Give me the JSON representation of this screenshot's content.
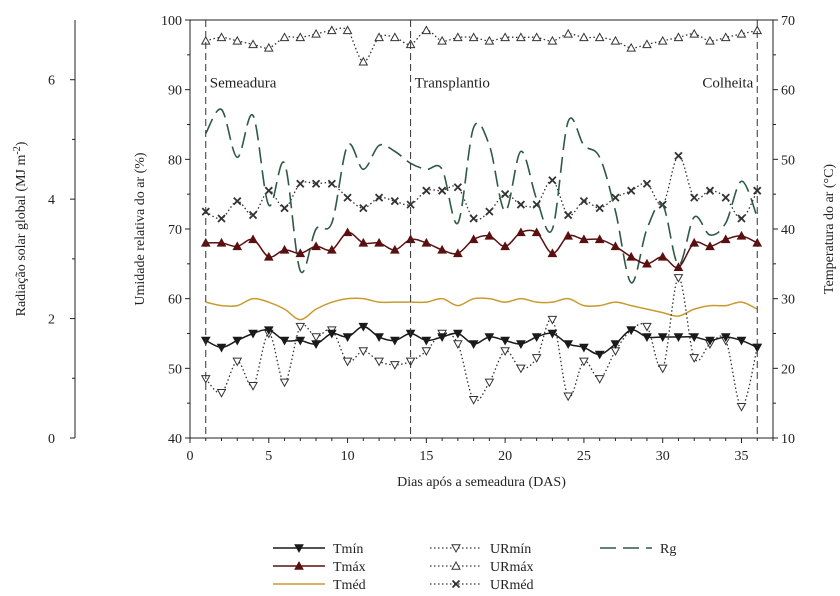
{
  "chart_data": {
    "type": "line",
    "title": "",
    "xlabel": "Dias após a semeadura (DAS)",
    "ylabel_left": "Umidade relativa do ar (%)",
    "ylabel_right": "Temperatura do ar (°C)",
    "ylabel_far_left_main": "Radiação solar global (MJ m",
    "ylabel_far_left_sup": "-2",
    "ylabel_far_left_end": ")",
    "xlim": [
      0,
      37
    ],
    "ylim_left": [
      40,
      100
    ],
    "ylim_right": [
      10,
      70
    ],
    "ylim_far_left": [
      0,
      7
    ],
    "x_ticks": [
      0,
      5,
      10,
      15,
      20,
      25,
      30,
      35
    ],
    "x_tick_labels": [
      "0",
      "5",
      "10",
      "15",
      "20",
      "25",
      "30",
      "35"
    ],
    "y_left_ticks": [
      40,
      50,
      60,
      70,
      80,
      90,
      100
    ],
    "y_left_tick_labels": [
      "40",
      "50",
      "60",
      "70",
      "80",
      "90",
      "100"
    ],
    "y_right_ticks": [
      10,
      20,
      30,
      40,
      50,
      60,
      70
    ],
    "y_right_tick_labels": [
      "10",
      "20",
      "30",
      "40",
      "50",
      "60",
      "70"
    ],
    "y_far_left_ticks": [
      0,
      2,
      4,
      6
    ],
    "y_far_left_tick_labels": [
      "0",
      "2",
      "4",
      "6"
    ],
    "annotations": [
      {
        "x": 1,
        "text": "Semeadura"
      },
      {
        "x": 14,
        "text": "Transplantio"
      },
      {
        "x": 36,
        "text": "Colheita"
      }
    ],
    "grid": false,
    "legend_position": "bottom",
    "x": [
      1,
      2,
      3,
      4,
      5,
      6,
      7,
      8,
      9,
      10,
      11,
      12,
      13,
      14,
      15,
      16,
      17,
      18,
      19,
      20,
      21,
      22,
      23,
      24,
      25,
      26,
      27,
      28,
      29,
      30,
      31,
      32,
      33,
      34,
      35,
      36
    ],
    "series": [
      {
        "name": "Tmín",
        "axis": "right",
        "color": "#1a1a1a",
        "dash": "solid",
        "marker": "triangle-down-filled",
        "values": [
          24.0,
          23.0,
          24.0,
          25.0,
          25.5,
          24.0,
          24.0,
          23.5,
          25.0,
          24.5,
          26.0,
          24.5,
          24.0,
          25.0,
          24.0,
          24.5,
          25.0,
          23.5,
          24.5,
          24.0,
          23.5,
          24.5,
          25.0,
          23.5,
          23.0,
          22.0,
          23.5,
          25.5,
          24.5,
          24.5,
          24.5,
          24.5,
          24.0,
          24.5,
          24.0,
          23.0
        ]
      },
      {
        "name": "Tmáx",
        "axis": "right",
        "color": "#5a1010",
        "dash": "solid",
        "marker": "triangle-up-filled",
        "values": [
          38.0,
          38.0,
          37.5,
          38.5,
          36.0,
          37.0,
          36.5,
          37.5,
          37.0,
          39.5,
          38.0,
          38.0,
          37.0,
          38.5,
          38.0,
          37.0,
          36.5,
          38.5,
          39.0,
          37.5,
          39.5,
          39.5,
          36.5,
          39.0,
          38.5,
          38.5,
          37.5,
          36.0,
          35.0,
          36.0,
          34.5,
          38.0,
          37.5,
          38.5,
          39.0,
          38.0
        ]
      },
      {
        "name": "Tméd",
        "axis": "right",
        "color": "#c99a2e",
        "dash": "solid",
        "marker": "none",
        "values": [
          29.5,
          29.0,
          29.0,
          30.0,
          29.5,
          28.5,
          27.0,
          28.5,
          29.5,
          30.0,
          30.0,
          29.5,
          29.5,
          29.5,
          29.5,
          30.0,
          29.0,
          30.0,
          30.0,
          29.5,
          30.0,
          29.5,
          29.5,
          30.0,
          29.0,
          29.0,
          29.5,
          29.0,
          28.5,
          28.0,
          27.5,
          28.5,
          29.0,
          29.0,
          29.5,
          28.5
        ]
      },
      {
        "name": "URmín",
        "axis": "left",
        "color": "#333333",
        "dash": "dotted",
        "marker": "triangle-down-open",
        "values": [
          48.5,
          46.5,
          51.0,
          47.5,
          55.0,
          48.0,
          56.0,
          54.5,
          55.5,
          51.0,
          52.5,
          51.0,
          50.5,
          51.0,
          52.5,
          55.0,
          53.5,
          45.5,
          48.0,
          52.5,
          50.0,
          51.5,
          57.0,
          46.0,
          51.0,
          48.5,
          52.5,
          55.5,
          56.0,
          50.0,
          63.0,
          51.5,
          53.5,
          54.0,
          44.5,
          53.0
        ]
      },
      {
        "name": "URmáx",
        "axis": "left",
        "color": "#333333",
        "dash": "dotted",
        "marker": "triangle-up-open",
        "values": [
          97.0,
          97.5,
          97.0,
          96.5,
          96.0,
          97.5,
          97.5,
          98.0,
          98.5,
          98.5,
          94.0,
          97.5,
          97.5,
          96.5,
          98.5,
          97.0,
          97.5,
          97.5,
          97.0,
          97.5,
          97.5,
          97.5,
          97.0,
          98.0,
          97.5,
          97.5,
          97.0,
          96.0,
          96.5,
          97.0,
          97.5,
          98.0,
          97.0,
          97.5,
          98.0,
          98.5
        ]
      },
      {
        "name": "URméd",
        "axis": "left",
        "color": "#333333",
        "dash": "dotted",
        "marker": "x",
        "values": [
          72.5,
          71.5,
          74.0,
          72.0,
          75.5,
          73.0,
          76.5,
          76.5,
          76.5,
          74.5,
          73.0,
          74.5,
          74.0,
          73.5,
          75.5,
          75.5,
          76.0,
          71.5,
          72.5,
          75.0,
          73.5,
          73.5,
          77.0,
          72.0,
          74.0,
          73.0,
          74.5,
          75.5,
          76.5,
          73.5,
          80.5,
          74.5,
          75.5,
          74.5,
          71.5,
          75.5
        ]
      },
      {
        "name": "Rg",
        "axis": "far_left",
        "color": "#2e5a45",
        "dash": "long-dash",
        "marker": "none",
        "values": [
          5.1,
          5.5,
          4.7,
          5.4,
          3.9,
          4.6,
          2.8,
          3.5,
          3.6,
          4.9,
          4.5,
          4.9,
          4.8,
          4.6,
          4.5,
          4.5,
          3.6,
          5.2,
          4.9,
          3.8,
          4.8,
          4.0,
          3.5,
          5.3,
          4.9,
          4.7,
          3.8,
          2.6,
          3.5,
          3.9,
          2.9,
          3.7,
          3.4,
          3.6,
          4.3,
          3.7
        ]
      }
    ]
  }
}
